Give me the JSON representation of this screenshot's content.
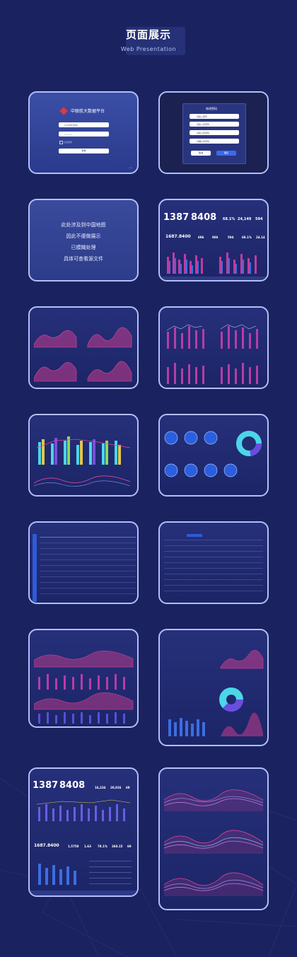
{
  "header": {
    "title": "页面展示",
    "subtitle": "Web Presentation"
  },
  "login": {
    "platform_name": "中联航大数据平台",
    "username_value": "1234567890",
    "password_value": "••••••",
    "remember_label": "记住密码",
    "login_button": "登录"
  },
  "change_password": {
    "title": "修改密码",
    "field1": "请输入账号",
    "field2": "请输入原密码",
    "field3": "请输入新密码",
    "field4": "请确认新密码",
    "cancel": "取消",
    "confirm": "确定"
  },
  "map_notice": {
    "line1": "此处涉及到中国地图",
    "line2": "因此不便做展示",
    "line3": "已模糊处理",
    "line4": "具体可查看源文件"
  },
  "dashboard1": {
    "big_value_1": "1387",
    "big_value_2": "8408",
    "stat1": "68.1%",
    "stat2": "24,149",
    "stat3": "594",
    "sub_value": "1687.8400",
    "sub1": "696",
    "sub2": "986",
    "sub3": "594",
    "sub4": "68.1%",
    "sub5": "24.14"
  },
  "dashboard_last": {
    "big_value_1": "1387",
    "big_value_2": "8408",
    "stat1": "16,234",
    "stat2": "20,016",
    "stat3": "68",
    "sub_value": "1687.8400",
    "sub1": "1.5758",
    "sub2": "1.63",
    "sub3": "78.1%",
    "sub4": "260.15",
    "sub5": "69"
  },
  "colors": {
    "background": "#1a2360",
    "card_border": "#b3bff7",
    "accent_blue": "#2f5ad8",
    "chart_pink": "#e0479e",
    "chart_purple": "#7b4dde"
  }
}
